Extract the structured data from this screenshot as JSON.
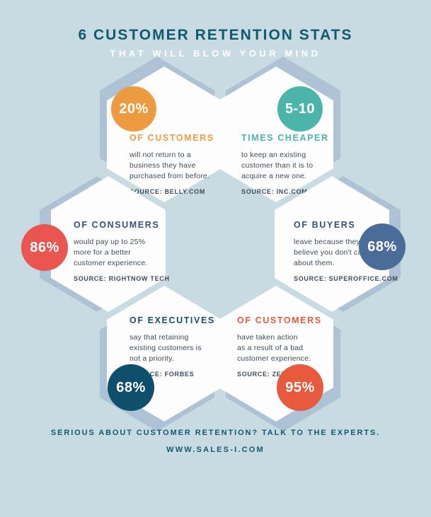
{
  "title": "6 CUSTOMER RETENTION STATS",
  "subtitle": "THAT WILL BLOW YOUR MIND",
  "colors": {
    "background": "#C8DBE2",
    "hex_face": "#FDFDFE",
    "hex_shadow": "#ADC2D4",
    "title": "#12586F",
    "subtitle": "#FFFFFF",
    "body_text": "#3E4C5A",
    "footer": "#12586F"
  },
  "stats": [
    {
      "badge": "20%",
      "badge_color": "#EC9B40",
      "heading": "OF CUSTOMERS",
      "heading_color": "#EC9B40",
      "body": "will not return to a\nbusiness they have\npurchased from before.",
      "source": "SOURCE: BELLY.COM"
    },
    {
      "badge": "5-10",
      "badge_color": "#4CB5AB",
      "heading": "TIMES CHEAPER",
      "heading_color": "#4CB5AB",
      "body": "to keep an existing\ncustomer than it is to\nacquire a new one.",
      "source": "SOURCE: INC.COM"
    },
    {
      "badge": "86%",
      "badge_color": "#E9564F",
      "heading": "OF CONSUMERS",
      "heading_color": "#33527E",
      "body": "would pay up to 25%\nmore for a better\ncustomer experience.",
      "source": "SOURCE: RIGHTNOW TECH"
    },
    {
      "badge": "68%",
      "badge_color": "#4A6C99",
      "heading": "OF BUYERS",
      "heading_color": "#33527E",
      "body": "leave because they\nbelieve you don't care\nabout them.",
      "source": "SOURCE: SUPEROFFICE.COM"
    },
    {
      "badge": "68%",
      "badge_color": "#0E506B",
      "heading": "OF EXECUTIVES",
      "heading_color": "#1A4E68",
      "body": "say that retaining\nexisting customers is\nnot a priority.",
      "source": "SOURCE: FORBES"
    },
    {
      "badge": "95%",
      "badge_color": "#E75A3E",
      "heading": "OF CUSTOMERS",
      "heading_color": "#E75A3E",
      "body": "have taken action\nas a result of a bad\ncustomer experience.",
      "source": "SOURCE: ZENDESK"
    }
  ],
  "footer": {
    "line1": "SERIOUS ABOUT CUSTOMER RETENTION? TALK TO THE EXPERTS.",
    "line2": "WWW.SALES-I.COM"
  }
}
